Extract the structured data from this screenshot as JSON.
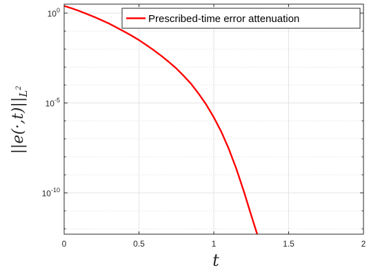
{
  "chart_data": {
    "type": "line",
    "title": "",
    "xlabel": "t",
    "ylabel": "||e(·,t)||",
    "ylabel_subscript": "L",
    "ylabel_subscript_power": "2",
    "xlim": [
      0,
      2
    ],
    "ylim_log10": [
      -12.3,
      0.5
    ],
    "yscale": "log",
    "grid": true,
    "legend_position": "top-right",
    "x_ticks": [
      0,
      0.5,
      1,
      1.5,
      2
    ],
    "x_tick_labels": [
      "0",
      "0.5",
      "1",
      "1.5",
      "2"
    ],
    "y_ticks_log10": [
      0,
      -5,
      -10
    ],
    "y_tick_labels": [
      {
        "base": "10",
        "exp": "0"
      },
      {
        "base": "10",
        "exp": "-5"
      },
      {
        "base": "10",
        "exp": "-10"
      }
    ],
    "series": [
      {
        "name": "Prescribed-time error attenuation",
        "color": "#ff0000",
        "x": [
          0,
          0.05,
          0.1,
          0.15,
          0.2,
          0.25,
          0.3,
          0.35,
          0.4,
          0.45,
          0.5,
          0.55,
          0.6,
          0.65,
          0.7,
          0.75,
          0.8,
          0.85,
          0.9,
          0.95,
          1.0,
          1.05,
          1.1,
          1.15,
          1.2,
          1.25,
          1.29
        ],
        "log10_y": [
          0.4,
          0.27,
          0.12,
          -0.04,
          -0.21,
          -0.39,
          -0.58,
          -0.8,
          -1.02,
          -1.25,
          -1.5,
          -1.78,
          -2.07,
          -2.38,
          -2.72,
          -3.08,
          -3.5,
          -3.95,
          -4.5,
          -5.1,
          -5.8,
          -6.6,
          -7.55,
          -8.65,
          -9.9,
          -11.25,
          -12.3
        ]
      }
    ]
  }
}
